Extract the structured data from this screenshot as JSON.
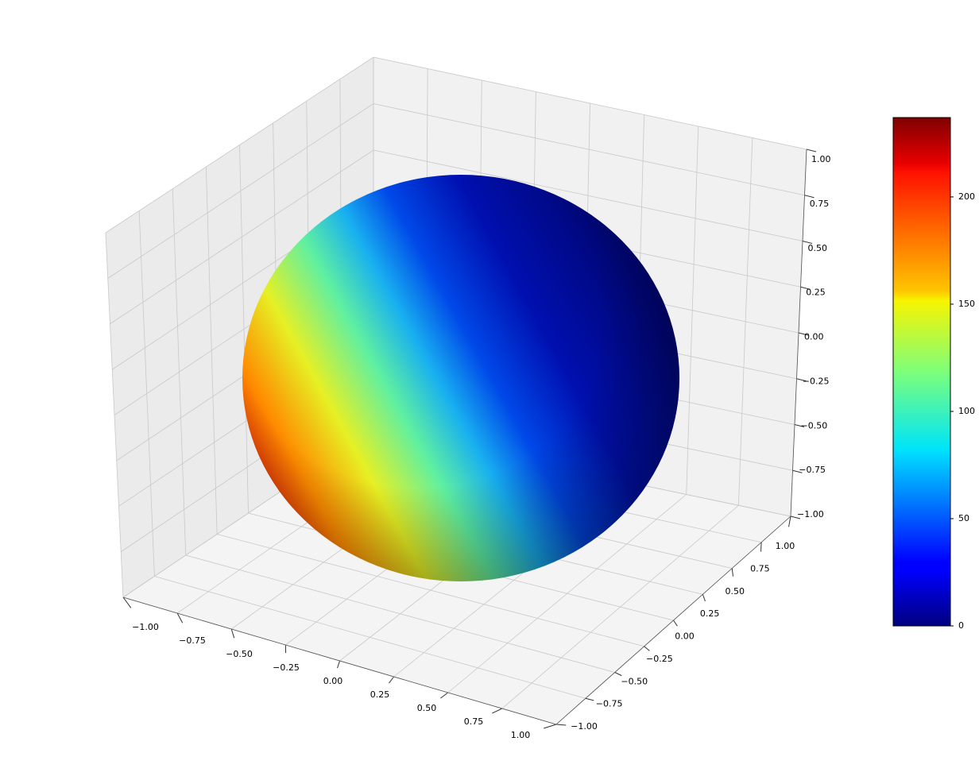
{
  "chart_data": {
    "type": "surface",
    "colormap": "jet",
    "xlim": [
      -1,
      1
    ],
    "ylim": [
      -1,
      1
    ],
    "zlim": [
      -1,
      1
    ],
    "xticks": [
      {
        "value": -1,
        "label": "−1.00"
      },
      {
        "value": -0.75,
        "label": "−0.75"
      },
      {
        "value": -0.5,
        "label": "−0.50"
      },
      {
        "value": -0.25,
        "label": "−0.25"
      },
      {
        "value": 0,
        "label": "0.00"
      },
      {
        "value": 0.25,
        "label": "0.25"
      },
      {
        "value": 0.5,
        "label": "0.50"
      },
      {
        "value": 0.75,
        "label": "0.75"
      },
      {
        "value": 1,
        "label": "1.00"
      }
    ],
    "yticks": [
      {
        "value": -1,
        "label": "−1.00"
      },
      {
        "value": -0.75,
        "label": "−0.75"
      },
      {
        "value": -0.5,
        "label": "−0.50"
      },
      {
        "value": -0.25,
        "label": "−0.25"
      },
      {
        "value": 0,
        "label": "0.00"
      },
      {
        "value": 0.25,
        "label": "0.25"
      },
      {
        "value": 0.5,
        "label": "0.50"
      },
      {
        "value": 0.75,
        "label": "0.75"
      },
      {
        "value": 1,
        "label": "1.00"
      }
    ],
    "zticks": [
      {
        "value": -1,
        "label": "−1.00"
      },
      {
        "value": -0.75,
        "label": "−0.75"
      },
      {
        "value": -0.5,
        "label": "−0.50"
      },
      {
        "value": -0.25,
        "label": "−0.25"
      },
      {
        "value": 0,
        "label": "0.00"
      },
      {
        "value": 0.25,
        "label": "0.25"
      },
      {
        "value": 0.5,
        "label": "0.50"
      },
      {
        "value": 0.75,
        "label": "0.75"
      },
      {
        "value": 1,
        "label": "1.00"
      }
    ],
    "colorbar": {
      "clim": [
        0,
        237
      ],
      "ticks": [
        0,
        50,
        100,
        150,
        200
      ]
    },
    "grid": true
  }
}
